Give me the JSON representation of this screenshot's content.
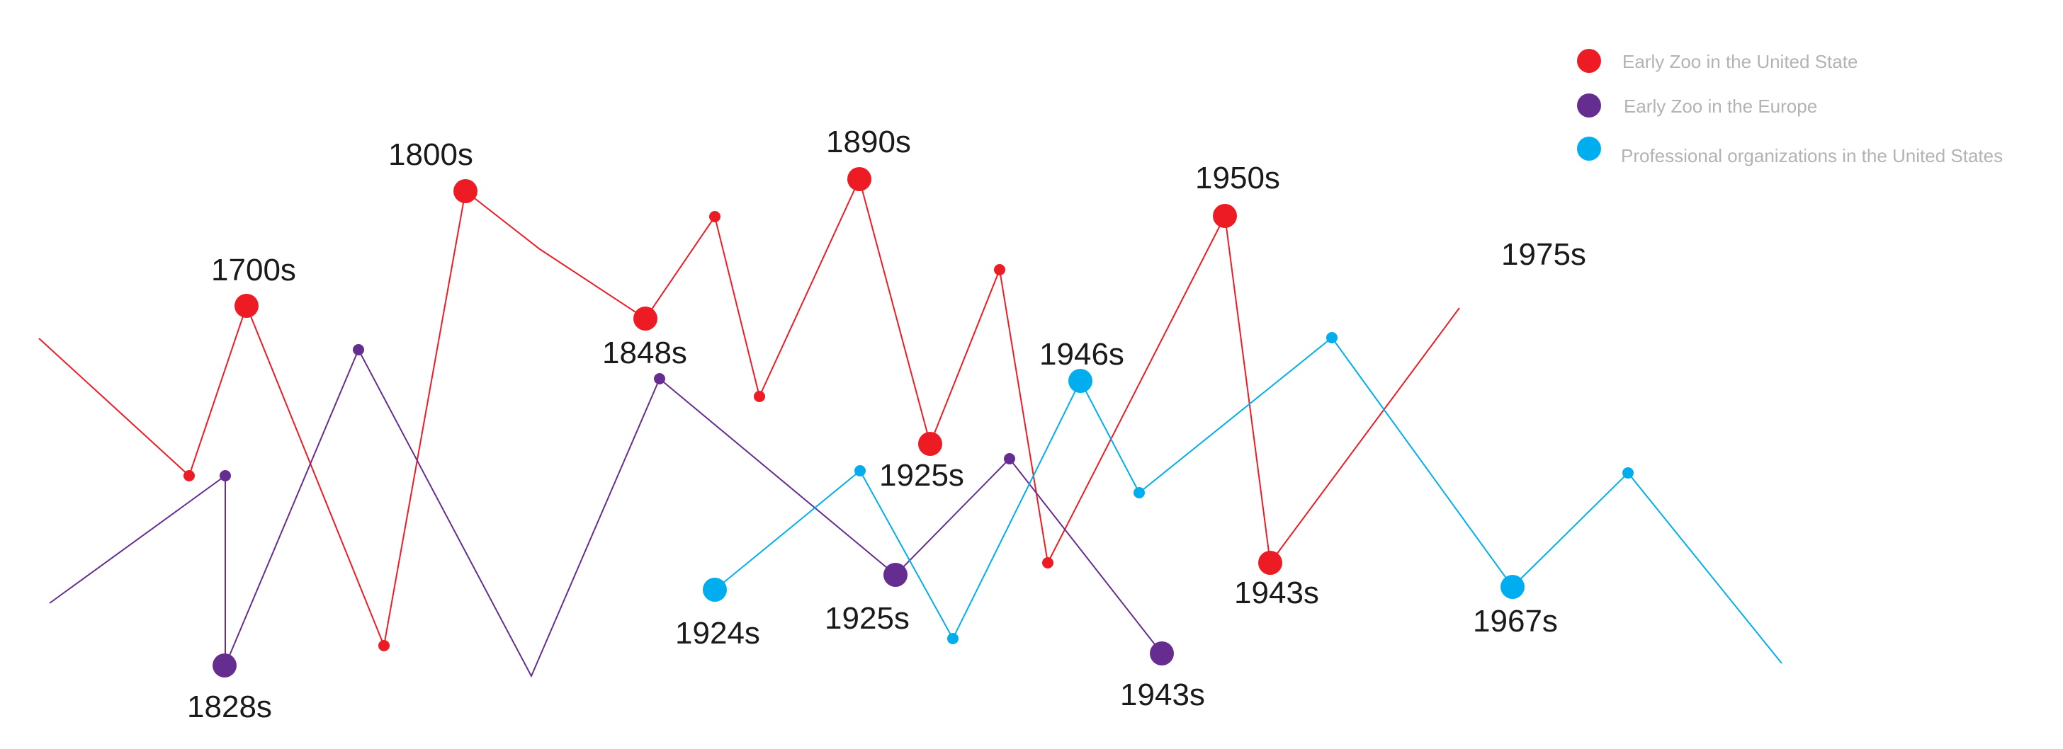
{
  "colors": {
    "us": "#ed1c24",
    "europe": "#662d91",
    "pro": "#00aeef"
  },
  "legend": [
    {
      "key": "us",
      "label": "Early Zoo in the United State"
    },
    {
      "key": "europe",
      "label": "Early Zoo in the Europe"
    },
    {
      "key": "pro",
      "label": "Professional organizations in the United States"
    }
  ],
  "labels": {
    "us": [
      "1700s",
      "1800s",
      "1848s",
      "1890s",
      "1925s",
      "1950s",
      "1943s",
      "1975s"
    ],
    "europe": [
      "1828s",
      "1925s",
      "1943s"
    ],
    "pro": [
      "1924s",
      "1946s",
      "1967s"
    ]
  }
}
